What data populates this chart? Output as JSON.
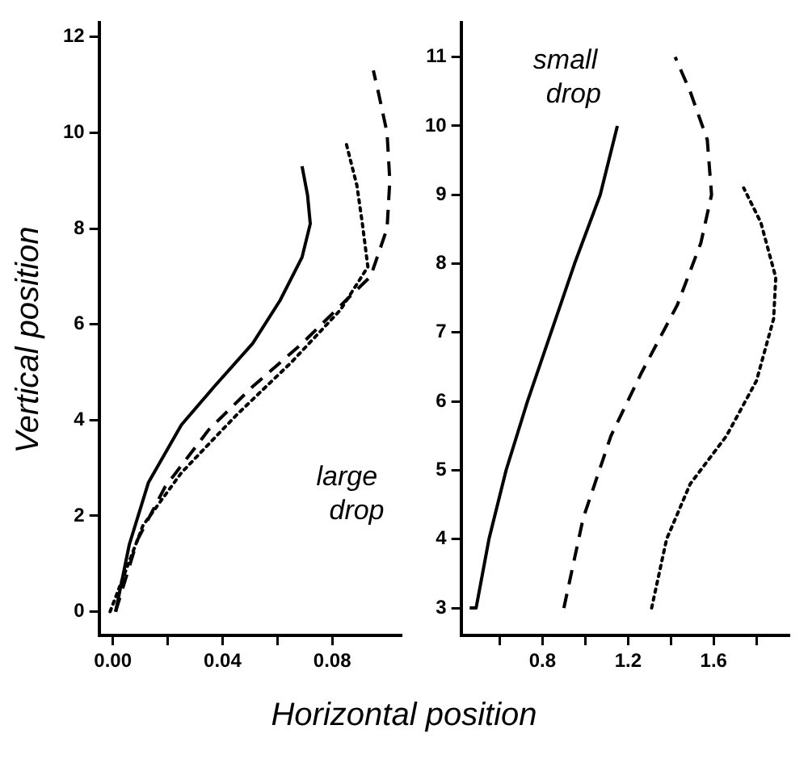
{
  "chart_data": [
    {
      "type": "line",
      "xlabel": "Horizontal position",
      "ylabel": "Vertical position",
      "annotations": [
        "large drop"
      ],
      "xlim": [
        -0.005,
        0.105
      ],
      "ylim": [
        -0.5,
        12.3
      ],
      "xticks": [
        {
          "value": 0,
          "label": "0.00"
        },
        {
          "value": 0.02,
          "label": null
        },
        {
          "value": 0.04,
          "label": "0.04"
        },
        {
          "value": 0.06,
          "label": null
        },
        {
          "value": 0.08,
          "label": "0.08"
        }
      ],
      "yticks": [
        0,
        2,
        4,
        6,
        8,
        10,
        12
      ],
      "grid": false,
      "legend": false,
      "marker": "none",
      "series": [
        {
          "color": "#000000",
          "line_style": "solid",
          "x": [
            0.001,
            0.006,
            0.013,
            0.025,
            0.037,
            0.051,
            0.061,
            0.069,
            0.072,
            0.071,
            0.069
          ],
          "values": [
            0,
            1.4,
            2.7,
            3.9,
            4.7,
            5.6,
            6.5,
            7.4,
            8.1,
            8.7,
            9.3
          ]
        },
        {
          "color": "#000000",
          "line_style": "dashed",
          "x": [
            0.001,
            0.009,
            0.019,
            0.035,
            0.051,
            0.069,
            0.085,
            0.094,
            0.1,
            0.101,
            0.1,
            0.097,
            0.095
          ],
          "values": [
            0,
            1.5,
            2.6,
            3.8,
            4.7,
            5.6,
            6.5,
            7.0,
            8,
            9,
            10,
            10.8,
            11.3
          ]
        },
        {
          "color": "#000000",
          "line_style": "dotted",
          "x": [
            -0.001,
            0.011,
            0.025,
            0.045,
            0.065,
            0.083,
            0.093,
            0.091,
            0.089,
            0.085
          ],
          "values": [
            0,
            1.8,
            2.9,
            4.1,
            5.2,
            6.3,
            7.2,
            8.1,
            8.9,
            9.8
          ]
        }
      ]
    },
    {
      "type": "line",
      "annotations": [
        "small drop"
      ],
      "xlim": [
        0.42,
        1.95
      ],
      "ylim": [
        2.6,
        11.5
      ],
      "xticks": [
        {
          "value": 0.6,
          "label": null
        },
        0.8,
        {
          "value": 1.0,
          "label": null
        },
        1.2,
        {
          "value": 1.4,
          "label": null
        },
        1.6,
        {
          "value": 1.8,
          "label": null
        }
      ],
      "yticks": [
        3,
        4,
        5,
        6,
        7,
        8,
        9,
        10,
        11
      ],
      "grid": false,
      "legend": false,
      "marker": "none",
      "series": [
        {
          "color": "#000000",
          "line_style": "solid",
          "x": [
            0.46,
            0.49,
            0.55,
            0.63,
            0.73,
            0.84,
            0.95,
            1.07,
            1.15
          ],
          "values": [
            3.0,
            3.0,
            4.0,
            5.0,
            6.0,
            7.0,
            8.0,
            9.0,
            10
          ]
        },
        {
          "color": "#000000",
          "line_style": "dashed",
          "x": [
            0.9,
            0.99,
            1.12,
            1.26,
            1.43,
            1.54,
            1.59,
            1.57,
            1.49,
            1.42
          ],
          "values": [
            3.0,
            4.3,
            5.5,
            6.4,
            7.4,
            8.3,
            9.0,
            9.8,
            10.5,
            11.0
          ]
        },
        {
          "color": "#000000",
          "line_style": "dotted",
          "x": [
            1.31,
            1.38,
            1.49,
            1.66,
            1.8,
            1.88,
            1.89,
            1.82,
            1.74
          ],
          "values": [
            3.0,
            4.0,
            4.8,
            5.5,
            6.3,
            7.2,
            7.8,
            8.6,
            9.1
          ]
        }
      ]
    }
  ]
}
